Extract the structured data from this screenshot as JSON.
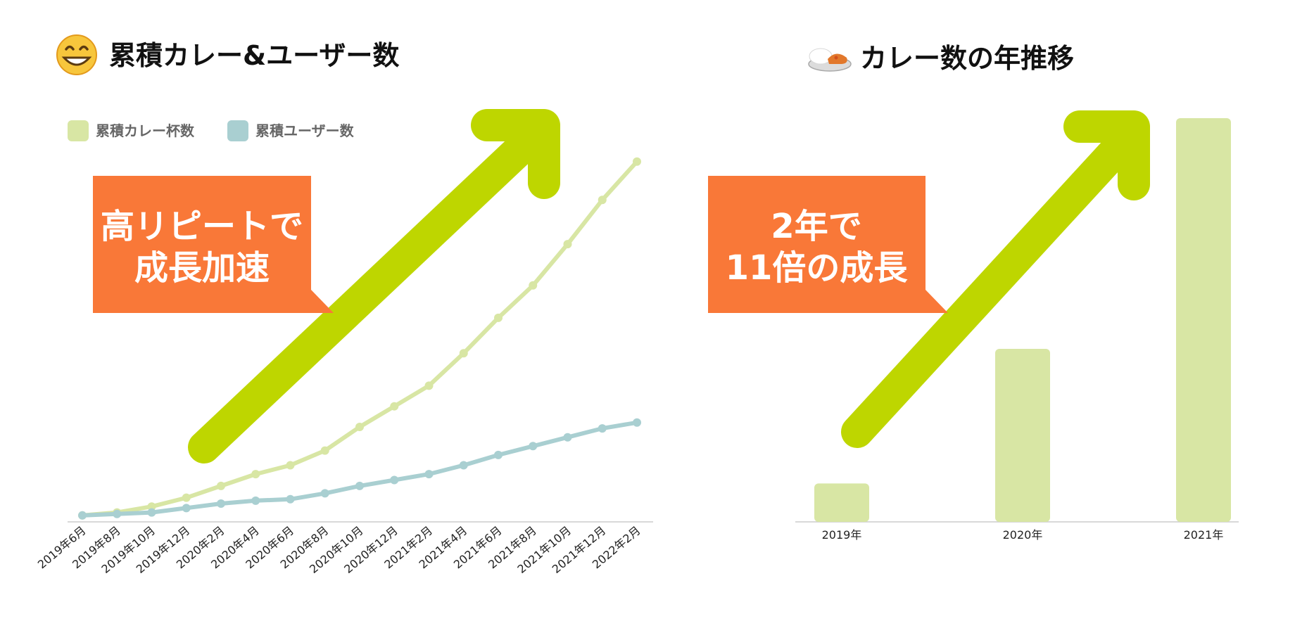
{
  "colors": {
    "curry_series": "#d8e6a4",
    "user_series": "#a9cfd1",
    "arrow": "#bed600",
    "callout": "#f97838",
    "callout_text": "#ffffff",
    "axis": "#cccccc",
    "emoji_face": "#f7c63c"
  },
  "left_panel": {
    "icon": "grinning-face-emoji",
    "title": "累積カレー&ユーザー数",
    "callout": {
      "line1": "高リピートで",
      "line2": "成長加速"
    }
  },
  "right_panel": {
    "icon": "curry-rice-emoji",
    "title": "カレー数の年推移",
    "callout": {
      "line1": "2年で",
      "line2": "11倍の成長"
    }
  },
  "chart_data": [
    {
      "type": "line",
      "categories": [
        "2019年6月",
        "2019年8月",
        "2019年10月",
        "2019年12月",
        "2020年2月",
        "2020年4月",
        "2020年6月",
        "2020年8月",
        "2020年10月",
        "2020年12月",
        "2021年2月",
        "2021年4月",
        "2021年6月",
        "2021年8月",
        "2021年10月",
        "2021年12月",
        "2022年2月"
      ],
      "series": [
        {
          "name": "累積カレー杯数",
          "values": [
            1,
            2,
            4,
            7,
            11,
            15,
            18,
            23,
            31,
            38,
            45,
            56,
            68,
            79,
            93,
            108,
            121
          ]
        },
        {
          "name": "累積ユーザー数",
          "values": [
            1,
            1.5,
            2,
            3.5,
            5,
            6,
            6.5,
            8.5,
            11,
            13,
            15,
            18,
            21.5,
            24.5,
            27.5,
            30.5,
            32.5
          ]
        }
      ],
      "ylim": [
        0,
        130
      ],
      "legend": "top-left",
      "grid": false
    },
    {
      "type": "bar",
      "categories": [
        "2019年",
        "2020年",
        "2021年"
      ],
      "values": [
        1,
        4.5,
        10.5
      ],
      "ylim": [
        0,
        10.5
      ],
      "grid": false
    }
  ]
}
